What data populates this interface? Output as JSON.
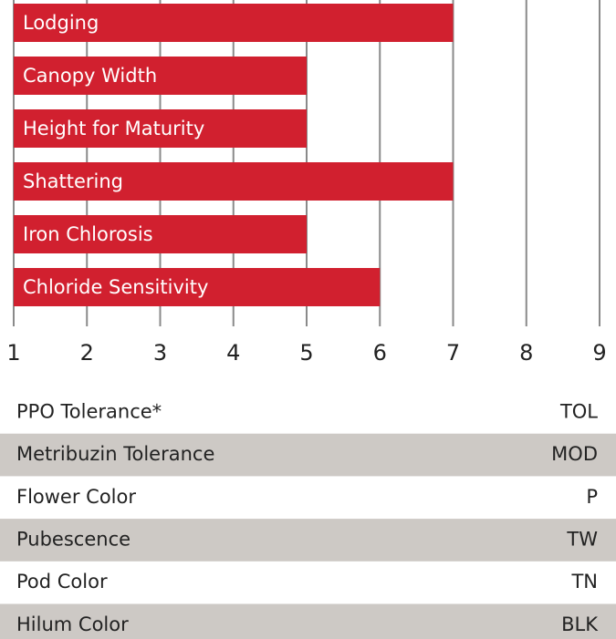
{
  "chart_data": {
    "type": "bar",
    "orientation": "horizontal",
    "categories": [
      "Lodging",
      "Canopy Width",
      "Height for Maturity",
      "Shattering",
      "Iron Chlorosis",
      "Chloride Sensitivity"
    ],
    "values": [
      7,
      5,
      5,
      7,
      5,
      6
    ],
    "color": "#d1202f",
    "xlim": [
      1,
      9
    ],
    "xticks": [
      1,
      2,
      3,
      4,
      5,
      6,
      7,
      8,
      9
    ],
    "grid": true
  },
  "table": {
    "rows": [
      [
        "PPO Tolerance*",
        "TOL"
      ],
      [
        "Metribuzin Tolerance",
        "MOD"
      ],
      [
        "Flower Color",
        "P"
      ],
      [
        "Pubescence",
        "TW"
      ],
      [
        "Pod Color",
        "TN"
      ],
      [
        "Hilum Color",
        "BLK"
      ]
    ]
  }
}
